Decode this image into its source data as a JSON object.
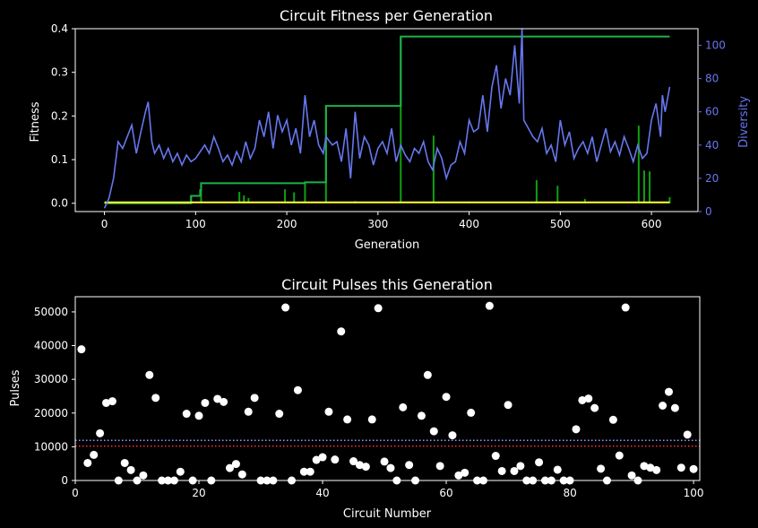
{
  "chart_data": [
    {
      "type": "line",
      "title": "Circuit Fitness per Generation",
      "xlabel": "Generation",
      "ylabel": "Fitness",
      "y2label": "Diversity",
      "xlim": [
        -32,
        651
      ],
      "ylim": [
        -0.019,
        0.4
      ],
      "y2lim": [
        0,
        110
      ],
      "xticks": [
        0,
        100,
        200,
        300,
        400,
        500,
        600
      ],
      "yticks": [
        0.0,
        0.1,
        0.2,
        0.3,
        0.4
      ],
      "yticklabels": [
        "0.0",
        "0.1",
        "0.2",
        "0.3",
        "0.4"
      ],
      "y2ticks": [
        0,
        20,
        40,
        60,
        80,
        100
      ],
      "colors": {
        "best": "#1db04a",
        "gen_best": "#10a010",
        "mean": "#ffff33",
        "diversity": "#6677ee"
      },
      "series": [
        {
          "key": "best",
          "x": [
            0,
            95,
            95,
            105,
            105,
            106,
            106,
            220,
            220,
            243,
            243,
            325,
            325,
            620
          ],
          "y": [
            0,
            0,
            0.017,
            0.017,
            0.03,
            0.03,
            0.046,
            0.046,
            0.048,
            0.048,
            0.223,
            0.223,
            0.382,
            0.382
          ]
        },
        {
          "key": "gen_best",
          "spikes": [
            [
              95,
              0.017
            ],
            [
              106,
              0.046
            ],
            [
              148,
              0.026
            ],
            [
              153,
              0.018
            ],
            [
              158,
              0.012
            ],
            [
              198,
              0.032
            ],
            [
              208,
              0.025
            ],
            [
              220,
              0.048
            ],
            [
              243,
              0.223
            ],
            [
              275,
              0.005
            ],
            [
              325,
              0.382
            ],
            [
              361,
              0.155
            ],
            [
              400,
              0.004
            ],
            [
              474,
              0.053
            ],
            [
              497,
              0.04
            ],
            [
              527,
              0.01
            ],
            [
              586,
              0.178
            ],
            [
              592,
              0.075
            ],
            [
              598,
              0.073
            ],
            [
              620,
              0.014
            ]
          ]
        },
        {
          "key": "mean",
          "x": [
            0,
            620
          ],
          "y": [
            0.002,
            0.002
          ]
        },
        {
          "key": "diversity",
          "axis": "y2",
          "x": [
            0,
            5,
            10,
            15,
            20,
            25,
            30,
            35,
            40,
            45,
            48,
            52,
            55,
            60,
            65,
            70,
            75,
            80,
            85,
            90,
            95,
            100,
            105,
            110,
            115,
            120,
            125,
            130,
            135,
            140,
            145,
            150,
            155,
            160,
            165,
            170,
            175,
            180,
            185,
            190,
            195,
            200,
            205,
            210,
            215,
            220,
            225,
            230,
            235,
            240,
            243,
            250,
            255,
            260,
            265,
            270,
            275,
            280,
            285,
            290,
            295,
            300,
            305,
            310,
            315,
            320,
            325,
            330,
            335,
            340,
            345,
            350,
            355,
            360,
            365,
            370,
            375,
            380,
            385,
            390,
            395,
            400,
            405,
            410,
            415,
            420,
            425,
            430,
            435,
            440,
            445,
            450,
            455,
            458,
            460,
            465,
            470,
            475,
            480,
            485,
            490,
            495,
            500,
            505,
            510,
            515,
            520,
            525,
            530,
            535,
            540,
            545,
            550,
            555,
            560,
            565,
            570,
            575,
            580,
            585,
            590,
            595,
            600,
            605,
            610,
            612,
            615,
            620
          ],
          "y": [
            2,
            8,
            20,
            42,
            38,
            45,
            52,
            35,
            48,
            60,
            66,
            42,
            35,
            40,
            32,
            38,
            30,
            35,
            28,
            34,
            30,
            32,
            36,
            40,
            35,
            45,
            38,
            30,
            34,
            28,
            36,
            30,
            42,
            32,
            38,
            55,
            45,
            60,
            38,
            58,
            48,
            55,
            40,
            50,
            35,
            70,
            45,
            55,
            40,
            35,
            45,
            40,
            42,
            30,
            50,
            20,
            60,
            32,
            45,
            40,
            28,
            38,
            42,
            35,
            50,
            30,
            40,
            34,
            30,
            38,
            35,
            42,
            30,
            25,
            38,
            32,
            20,
            28,
            30,
            42,
            35,
            55,
            48,
            50,
            70,
            48,
            75,
            88,
            62,
            80,
            70,
            100,
            65,
            110,
            55,
            50,
            45,
            42,
            50,
            35,
            40,
            30,
            55,
            40,
            48,
            32,
            38,
            42,
            35,
            45,
            30,
            40,
            50,
            36,
            42,
            34,
            45,
            38,
            30,
            40,
            32,
            35,
            55,
            65,
            45,
            70,
            60,
            75
          ]
        }
      ]
    },
    {
      "type": "scatter",
      "title": "Circuit Pulses this Generation",
      "xlabel": "Circuit Number",
      "ylabel": "Pulses",
      "xlim": [
        0,
        101
      ],
      "ylim": [
        0,
        54500
      ],
      "xticks": [
        0,
        20,
        40,
        60,
        80,
        100
      ],
      "yticks": [
        0,
        10000,
        20000,
        30000,
        40000,
        50000
      ],
      "colors": {
        "points": "#ffffff",
        "line_red": "#ff3333",
        "line_blue": "#9999ff"
      },
      "hlines": [
        {
          "y": 10200,
          "color": "line_red"
        },
        {
          "y": 11900,
          "color": "line_blue"
        }
      ],
      "points": [
        [
          1,
          38900
        ],
        [
          2,
          5200
        ],
        [
          3,
          7600
        ],
        [
          4,
          14000
        ],
        [
          5,
          23000
        ],
        [
          6,
          23500
        ],
        [
          7,
          0
        ],
        [
          8,
          5200
        ],
        [
          9,
          3100
        ],
        [
          10,
          0
        ],
        [
          11,
          1500
        ],
        [
          12,
          31300
        ],
        [
          13,
          24500
        ],
        [
          14,
          0
        ],
        [
          15,
          0
        ],
        [
          16,
          0
        ],
        [
          17,
          2600
        ],
        [
          18,
          19800
        ],
        [
          19,
          0
        ],
        [
          20,
          19200
        ],
        [
          21,
          23000
        ],
        [
          22,
          0
        ],
        [
          23,
          24200
        ],
        [
          24,
          23300
        ],
        [
          25,
          3700
        ],
        [
          26,
          4900
        ],
        [
          27,
          1800
        ],
        [
          28,
          20400
        ],
        [
          29,
          24500
        ],
        [
          30,
          0
        ],
        [
          31,
          0
        ],
        [
          32,
          0
        ],
        [
          33,
          19800
        ],
        [
          34,
          51300
        ],
        [
          35,
          0
        ],
        [
          36,
          26800
        ],
        [
          37,
          2600
        ],
        [
          38,
          2600
        ],
        [
          39,
          6100
        ],
        [
          40,
          6900
        ],
        [
          41,
          20400
        ],
        [
          42,
          6200
        ],
        [
          43,
          44200
        ],
        [
          44,
          18100
        ],
        [
          45,
          5700
        ],
        [
          46,
          4600
        ],
        [
          47,
          4100
        ],
        [
          48,
          18100
        ],
        [
          49,
          51100
        ],
        [
          50,
          5600
        ],
        [
          51,
          3700
        ],
        [
          52,
          0
        ],
        [
          53,
          21700
        ],
        [
          54,
          4600
        ],
        [
          55,
          0
        ],
        [
          56,
          19200
        ],
        [
          57,
          31300
        ],
        [
          58,
          14600
        ],
        [
          59,
          4300
        ],
        [
          60,
          24800
        ],
        [
          61,
          13400
        ],
        [
          62,
          1500
        ],
        [
          63,
          2300
        ],
        [
          64,
          20100
        ],
        [
          65,
          0
        ],
        [
          66,
          0
        ],
        [
          67,
          51800
        ],
        [
          68,
          7300
        ],
        [
          69,
          2800
        ],
        [
          70,
          22400
        ],
        [
          71,
          2800
        ],
        [
          72,
          4300
        ],
        [
          73,
          0
        ],
        [
          74,
          0
        ],
        [
          75,
          5400
        ],
        [
          76,
          0
        ],
        [
          77,
          0
        ],
        [
          78,
          3200
        ],
        [
          79,
          0
        ],
        [
          80,
          0
        ],
        [
          81,
          15200
        ],
        [
          82,
          23800
        ],
        [
          83,
          24300
        ],
        [
          84,
          21500
        ],
        [
          85,
          3500
        ],
        [
          86,
          0
        ],
        [
          87,
          18000
        ],
        [
          88,
          7400
        ],
        [
          89,
          51300
        ],
        [
          90,
          1500
        ],
        [
          91,
          0
        ],
        [
          92,
          4300
        ],
        [
          93,
          3800
        ],
        [
          94,
          3100
        ],
        [
          95,
          22200
        ],
        [
          96,
          26300
        ],
        [
          97,
          21500
        ],
        [
          98,
          3800
        ],
        [
          99,
          13600
        ],
        [
          100,
          3400
        ]
      ]
    }
  ]
}
